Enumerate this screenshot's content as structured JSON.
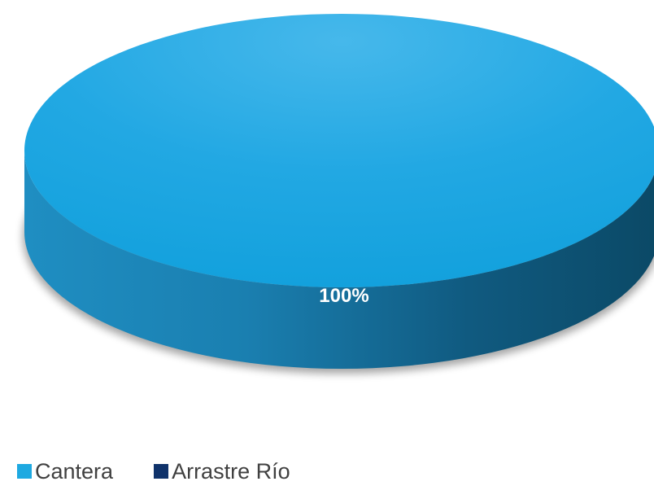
{
  "chart_data": {
    "type": "pie",
    "style": "3d",
    "categories": [
      "Cantera",
      "Arrastre Río"
    ],
    "values": [
      100,
      0
    ],
    "data_labels": [
      "100%",
      ""
    ],
    "colors": [
      "#1ea9e1",
      "#10336b"
    ],
    "legend_position": "bottom-left"
  }
}
